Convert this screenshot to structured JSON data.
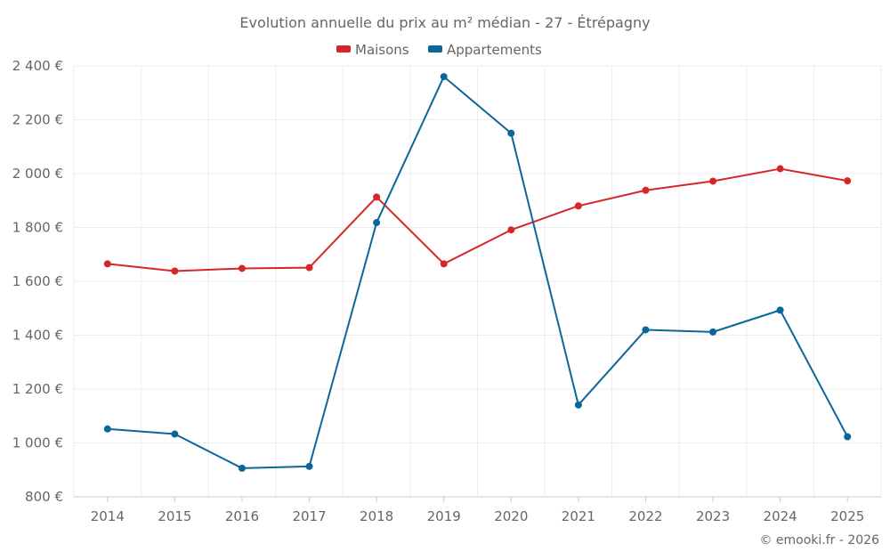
{
  "chart_data": {
    "type": "line",
    "title": "Evolution annuelle du prix au m² médian - 27 - Étrépagny",
    "xlabel": "",
    "ylabel": "",
    "categories": [
      "2014",
      "2015",
      "2016",
      "2017",
      "2018",
      "2019",
      "2020",
      "2021",
      "2022",
      "2023",
      "2024",
      "2025"
    ],
    "ylim": [
      800,
      2400
    ],
    "y_ticks": [
      800,
      1000,
      1200,
      1400,
      1600,
      1800,
      2000,
      2200,
      2400
    ],
    "y_tick_labels": [
      "800 €",
      "1 000 €",
      "1 200 €",
      "1 400 €",
      "1 600 €",
      "1 800 €",
      "2 000 €",
      "2 200 €",
      "2 400 €"
    ],
    "grid": true,
    "legend_position": "top-center",
    "series": [
      {
        "name": "Maisons",
        "color": "#d62728",
        "values": [
          1665,
          1638,
          1648,
          1651,
          1913,
          1665,
          1791,
          1880,
          1938,
          1972,
          2018,
          1973
        ]
      },
      {
        "name": "Appartements",
        "color": "#0b6699",
        "values": [
          1052,
          1033,
          906,
          913,
          1818,
          2360,
          2150,
          1141,
          1420,
          1412,
          1493,
          1023
        ]
      }
    ]
  },
  "credit": "© emooki.fr - 2026"
}
